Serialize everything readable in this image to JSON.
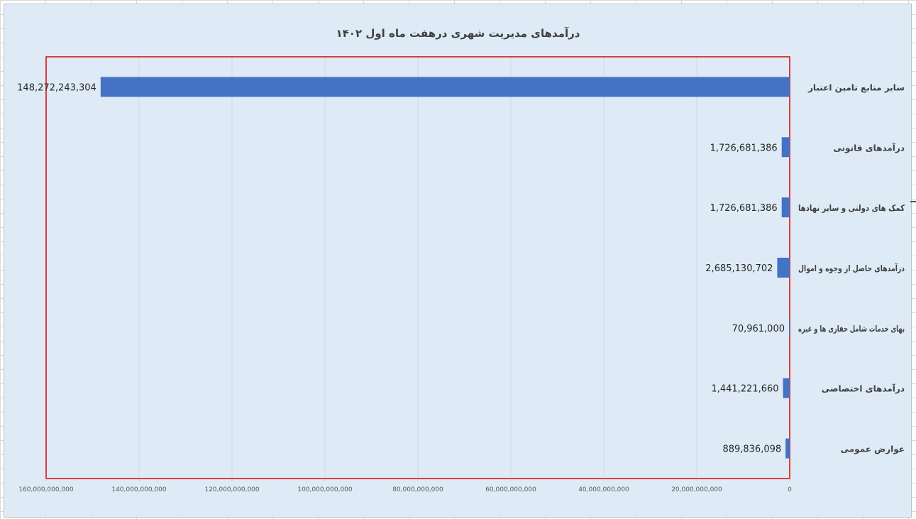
{
  "chart_data": {
    "type": "bar",
    "orientation": "horizontal",
    "title": "درآمدهای مدیریت شهری درهفت ماه اول ۱۴۰۲",
    "categories": [
      "سایر منابع تامین اعتبار",
      "درآمدهای قانونی",
      "کمک های دولتی و سایر نهادها",
      "درآمدهای حاصل از وجوه و اموال",
      "بهای خدمات شامل حفاری ها و غیره",
      "درآمدهای اختصاصی",
      "عوارض عمومی"
    ],
    "values": [
      148272243304,
      1726681386,
      1726681386,
      2685130702,
      70961000,
      1441221660,
      889836098
    ],
    "data_labels": [
      "148,272,243,304",
      "1,726,681,386",
      "1,726,681,386",
      "2,685,130,702",
      "70,961,000",
      "1,441,221,660",
      "889,836,098"
    ],
    "x_ticks": [
      0,
      20000000000,
      40000000000,
      60000000000,
      80000000000,
      100000000000,
      120000000000,
      140000000000,
      160000000000
    ],
    "x_tick_labels": [
      "0",
      "20,000,000,000",
      "40,000,000,000",
      "60,000,000,000",
      "80,000,000,000",
      "100,000,000,000",
      "120,000,000,000",
      "140,000,000,000",
      "160,000,000,000"
    ],
    "xlim": [
      0,
      160000000000
    ],
    "x_axis_reversed": true,
    "grid": true,
    "xlabel": "",
    "ylabel": "",
    "bar_color": "#4472c4",
    "plot_border_color": "#e00000"
  }
}
